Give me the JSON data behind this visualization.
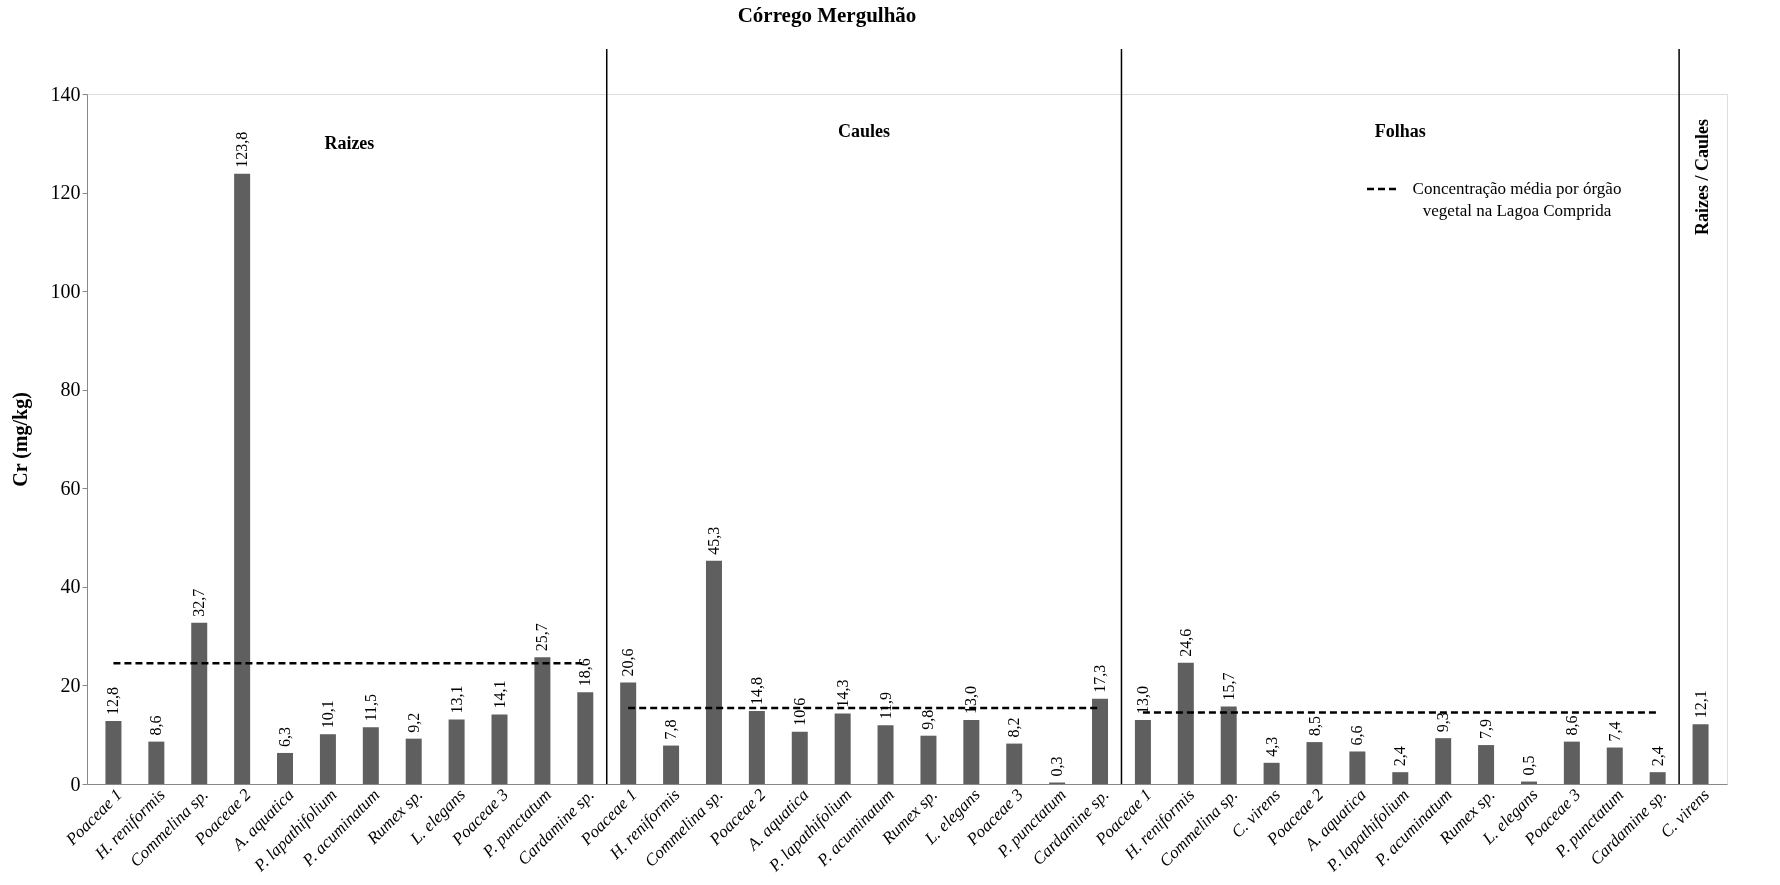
{
  "chart_data": {
    "type": "bar",
    "title": "Córrego Mergulhão",
    "ylabel": "Cr (mg/kg)",
    "categories": [
      "Poaceae 1",
      "H. reniformis",
      "Commelina sp.",
      "Poaceae 2",
      "A. aquatica",
      "P. lapathifolium",
      "P. acuminatum",
      "Rumex sp.",
      "L. elegans",
      "Poaceae 3",
      "P. punctatum",
      "Cardamine sp.",
      "Poaceae 1",
      "H. reniformis",
      "Commelina sp.",
      "Poaceae 2",
      "A. aquatica",
      "P. lapathifolium",
      "P. acuminatum",
      "Rumex sp.",
      "L. elegans",
      "Poaceae 3",
      "P. punctatum",
      "Cardamine sp.",
      "Poaceae 1",
      "H. reniformis",
      "Commelina sp.",
      "C. virens",
      "Poaceae 2",
      "A. aquatica",
      "P. lapathifolium",
      "P. acuminatum",
      "Rumex sp.",
      "L. elegans",
      "Poaceae 3",
      "P. punctatum",
      "Cardamine sp.",
      "C. virens"
    ],
    "series": [
      {
        "color": "#5f5f5f",
        "values": [
          12.8,
          8.6,
          32.7,
          123.8,
          6.3,
          10.1,
          11.5,
          9.2,
          13.1,
          14.1,
          25.7,
          18.6,
          20.6,
          7.8,
          45.3,
          14.8,
          10.6,
          14.3,
          11.9,
          9.8,
          13.0,
          8.2,
          0.3,
          17.3,
          13.0,
          24.6,
          15.7,
          4.3,
          8.5,
          6.6,
          2.4,
          9.3,
          7.9,
          0.5,
          8.6,
          7.4,
          2.4,
          12.1
        ],
        "value_labels": [
          "12,8",
          "8,6",
          "32,7",
          "123,8",
          "6,3",
          "10,1",
          "11,5",
          "9,2",
          "13,1",
          "14,1",
          "25,7",
          "18,6",
          "20,6",
          "7,8",
          "45,3",
          "14,8",
          "10,6",
          "14,3",
          "11,9",
          "9,8",
          "13,0",
          "8,2",
          "0,3",
          "17,3",
          "13,0",
          "24,6",
          "15,7",
          "4,3",
          "8,5",
          "6,6",
          "2,4",
          "9,3",
          "7,9",
          "0,5",
          "8,6",
          "7,4",
          "2,4",
          "12,1"
        ]
      },
      {
        "type": "line",
        "name": "Concentração média por órgão vegetal na Lagoa Comprida",
        "color": "#000000",
        "line_style": "dashed",
        "values": [
          24.5,
          24.5,
          24.5,
          24.5,
          24.5,
          24.5,
          24.5,
          24.5,
          24.5,
          24.5,
          24.5,
          24.5,
          15.4,
          15.4,
          15.4,
          15.4,
          15.4,
          15.4,
          15.4,
          15.4,
          15.4,
          15.4,
          15.4,
          15.4,
          14.5,
          14.5,
          14.5,
          14.5,
          14.5,
          14.5,
          14.5,
          14.5,
          14.5,
          14.5,
          14.5,
          14.5,
          14.5,
          null
        ]
      }
    ],
    "annotations": [
      "Raizes",
      "Caules",
      "Folhas",
      "Raizes / Caules"
    ],
    "ylim": [
      0,
      140
    ],
    "yticks": [
      0,
      20,
      40,
      60,
      80,
      100,
      120,
      140
    ],
    "grid": false,
    "legend": "top right"
  }
}
